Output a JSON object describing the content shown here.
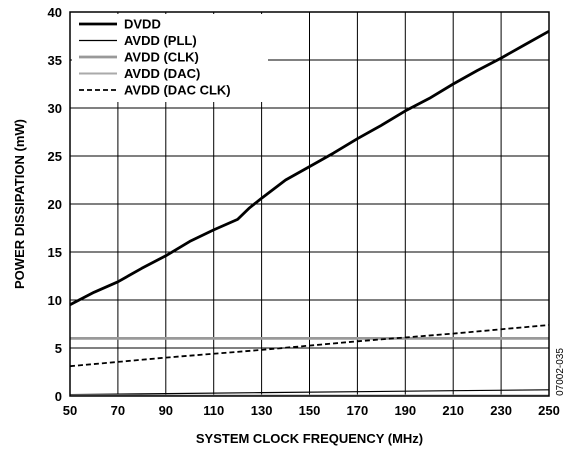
{
  "chart_data": {
    "type": "line",
    "title": "",
    "xlabel": "SYSTEM CLOCK FREQUENCY (MHz)",
    "ylabel": "POWER DISSIPATION (mW)",
    "xlim": [
      50,
      250
    ],
    "ylim": [
      0,
      40
    ],
    "x_ticks": [
      "50",
      "70",
      "90",
      "110",
      "130",
      "150",
      "170",
      "190",
      "210",
      "230",
      "250"
    ],
    "y_ticks": [
      "0",
      "5",
      "10",
      "15",
      "20",
      "25",
      "30",
      "35",
      "40"
    ],
    "grid": true,
    "legend_position": "top-left",
    "figure_id": "07002-035",
    "series": [
      {
        "name": "DVDD",
        "color": "#000000",
        "style": "solid-thick",
        "x": [
          50,
          60,
          70,
          80,
          90,
          100,
          110,
          120,
          125,
          130,
          140,
          150,
          160,
          170,
          180,
          190,
          200,
          210,
          220,
          230,
          240,
          250
        ],
        "y": [
          9.5,
          10.8,
          11.9,
          13.3,
          14.6,
          16.1,
          17.3,
          18.4,
          19.6,
          20.6,
          22.5,
          23.9,
          25.3,
          26.8,
          28.2,
          29.7,
          31.0,
          32.5,
          33.9,
          35.2,
          36.6,
          38.0
        ]
      },
      {
        "name": "AVDD (PLL)",
        "color": "#000000",
        "style": "solid-thin",
        "x": [
          50,
          90,
          130,
          170,
          210,
          250
        ],
        "y": [
          0.15,
          0.25,
          0.35,
          0.45,
          0.55,
          0.65
        ]
      },
      {
        "name": "AVDD (CLK)",
        "color": "#999999",
        "style": "solid-gray-thick",
        "x": [
          50,
          250
        ],
        "y": [
          6.0,
          6.0
        ]
      },
      {
        "name": "AVDD (DAC)",
        "color": "#999999",
        "style": "solid-gray",
        "x": [
          50,
          250
        ],
        "y": [
          0.05,
          0.05
        ]
      },
      {
        "name": "AVDD (DAC CLK)",
        "color": "#000000",
        "style": "dashed",
        "x": [
          50,
          90,
          130,
          170,
          210,
          250
        ],
        "y": [
          3.1,
          4.0,
          4.8,
          5.7,
          6.5,
          7.4
        ]
      }
    ]
  }
}
